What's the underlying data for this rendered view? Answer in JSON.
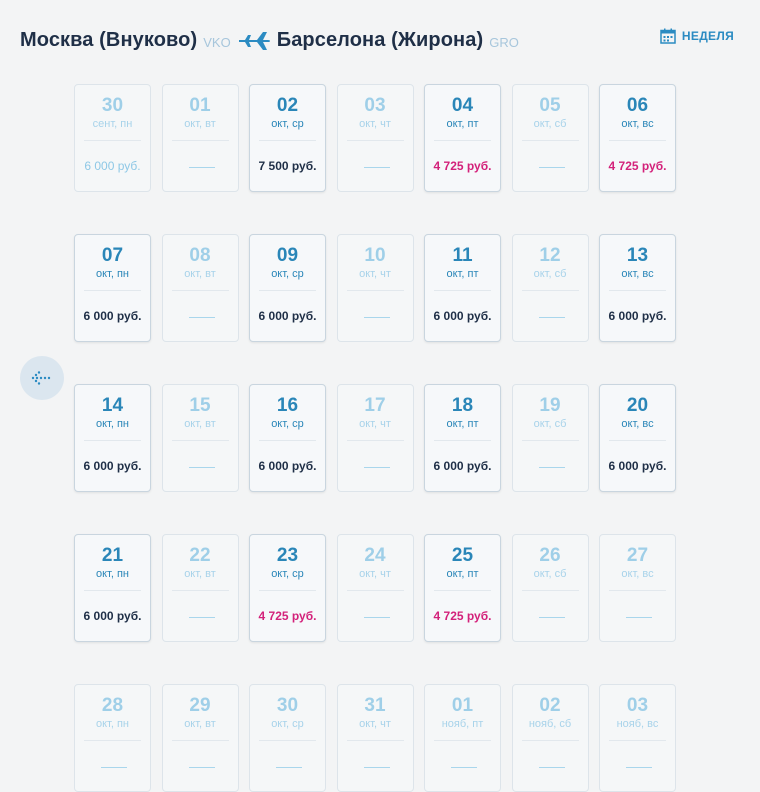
{
  "header": {
    "from_city": "Москва (Внуково)",
    "from_code": "VKO",
    "to_city": "Барселона (Жирона)",
    "to_code": "GRO",
    "week_label": "НЕДЕЛЯ"
  },
  "colors": {
    "accent": "#2a86b8",
    "text": "#1f2f47",
    "cheap": "#d3217a",
    "faint": "#9fcfe8"
  },
  "icons": {
    "plane": "plane-icon",
    "calendar": "calendar-icon",
    "prev": "arrow-left-icon"
  },
  "days": [
    {
      "num": "30",
      "dow": "сент, пн",
      "price": "6 000 руб.",
      "state": "faint"
    },
    {
      "num": "01",
      "dow": "окт, вт",
      "price": "",
      "state": "none"
    },
    {
      "num": "02",
      "dow": "окт, ср",
      "price": "7 500 руб.",
      "state": "normal"
    },
    {
      "num": "03",
      "dow": "окт, чт",
      "price": "",
      "state": "none"
    },
    {
      "num": "04",
      "dow": "окт, пт",
      "price": "4 725 руб.",
      "state": "cheap"
    },
    {
      "num": "05",
      "dow": "окт, сб",
      "price": "",
      "state": "none"
    },
    {
      "num": "06",
      "dow": "окт, вс",
      "price": "4 725 руб.",
      "state": "cheap"
    },
    {
      "num": "07",
      "dow": "окт, пн",
      "price": "6 000 руб.",
      "state": "normal"
    },
    {
      "num": "08",
      "dow": "окт, вт",
      "price": "",
      "state": "none"
    },
    {
      "num": "09",
      "dow": "окт, ср",
      "price": "6 000 руб.",
      "state": "normal"
    },
    {
      "num": "10",
      "dow": "окт, чт",
      "price": "",
      "state": "none"
    },
    {
      "num": "11",
      "dow": "окт, пт",
      "price": "6 000 руб.",
      "state": "normal"
    },
    {
      "num": "12",
      "dow": "окт, сб",
      "price": "",
      "state": "none"
    },
    {
      "num": "13",
      "dow": "окт, вс",
      "price": "6 000 руб.",
      "state": "normal"
    },
    {
      "num": "14",
      "dow": "окт, пн",
      "price": "6 000 руб.",
      "state": "normal"
    },
    {
      "num": "15",
      "dow": "окт, вт",
      "price": "",
      "state": "none"
    },
    {
      "num": "16",
      "dow": "окт, ср",
      "price": "6 000 руб.",
      "state": "normal"
    },
    {
      "num": "17",
      "dow": "окт, чт",
      "price": "",
      "state": "none"
    },
    {
      "num": "18",
      "dow": "окт, пт",
      "price": "6 000 руб.",
      "state": "normal"
    },
    {
      "num": "19",
      "dow": "окт, сб",
      "price": "",
      "state": "none"
    },
    {
      "num": "20",
      "dow": "окт, вс",
      "price": "6 000 руб.",
      "state": "normal"
    },
    {
      "num": "21",
      "dow": "окт, пн",
      "price": "6 000 руб.",
      "state": "normal"
    },
    {
      "num": "22",
      "dow": "окт, вт",
      "price": "",
      "state": "none"
    },
    {
      "num": "23",
      "dow": "окт, ср",
      "price": "4 725 руб.",
      "state": "cheap"
    },
    {
      "num": "24",
      "dow": "окт, чт",
      "price": "",
      "state": "none"
    },
    {
      "num": "25",
      "dow": "окт, пт",
      "price": "4 725 руб.",
      "state": "cheap"
    },
    {
      "num": "26",
      "dow": "окт, сб",
      "price": "",
      "state": "none"
    },
    {
      "num": "27",
      "dow": "окт, вс",
      "price": "",
      "state": "none"
    },
    {
      "num": "28",
      "dow": "окт, пн",
      "price": "",
      "state": "none"
    },
    {
      "num": "29",
      "dow": "окт, вт",
      "price": "",
      "state": "none"
    },
    {
      "num": "30",
      "dow": "окт, ср",
      "price": "",
      "state": "none"
    },
    {
      "num": "31",
      "dow": "окт, чт",
      "price": "",
      "state": "none"
    },
    {
      "num": "01",
      "dow": "нояб, пт",
      "price": "",
      "state": "none"
    },
    {
      "num": "02",
      "dow": "нояб, сб",
      "price": "",
      "state": "none"
    },
    {
      "num": "03",
      "dow": "нояб, вс",
      "price": "",
      "state": "none"
    }
  ]
}
